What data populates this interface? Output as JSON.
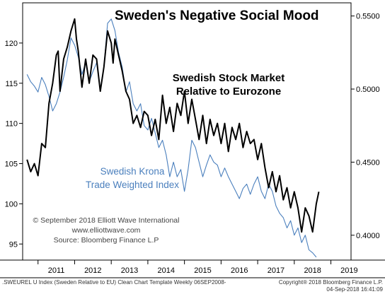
{
  "chart_data": {
    "type": "line",
    "title": "Sweden's Negative Social Mood",
    "annotations": {
      "black_series_label": [
        "Swedish Stock Market",
        "Relative to Eurozone"
      ],
      "blue_series_label": [
        "Swedish Krona",
        "Trade Weighted Index"
      ],
      "credits": [
        "© September 2018 Elliott Wave International",
        "www.elliottwave.com",
        "Source: Bloomberg Finance L.P"
      ]
    },
    "x_ticks": [
      "2011",
      "2012",
      "2013",
      "2014",
      "2015",
      "2016",
      "2017",
      "2018",
      "2019"
    ],
    "y_left": {
      "ticks": [
        "95",
        "100",
        "105",
        "110",
        "115",
        "120"
      ],
      "ylim": [
        93.0,
        125.0
      ]
    },
    "y_right": {
      "ticks": [
        "0.4000",
        "0.4500",
        "0.5000",
        "0.5500"
      ],
      "ylim": [
        0.383,
        0.559
      ]
    },
    "grid": false,
    "series": [
      {
        "key": "stock",
        "color": "#000000",
        "axis": "left",
        "x": [
          2010.7,
          2010.8,
          2010.9,
          2011.0,
          2011.1,
          2011.2,
          2011.3,
          2011.4,
          2011.5,
          2011.55,
          2011.6,
          2011.7,
          2011.8,
          2011.9,
          2012.0,
          2012.05,
          2012.1,
          2012.2,
          2012.3,
          2012.4,
          2012.5,
          2012.6,
          2012.7,
          2012.8,
          2012.9,
          2013.0,
          2013.05,
          2013.1,
          2013.2,
          2013.3,
          2013.4,
          2013.5,
          2013.6,
          2013.7,
          2013.8,
          2013.9,
          2014.0,
          2014.1,
          2014.2,
          2014.3,
          2014.4,
          2014.5,
          2014.6,
          2014.7,
          2014.8,
          2014.9,
          2015.0,
          2015.1,
          2015.2,
          2015.3,
          2015.4,
          2015.5,
          2015.6,
          2015.7,
          2015.8,
          2015.9,
          2016.0,
          2016.1,
          2016.2,
          2016.3,
          2016.4,
          2016.5,
          2016.6,
          2016.7,
          2016.8,
          2016.9,
          2017.0,
          2017.1,
          2017.2,
          2017.3,
          2017.4,
          2017.5,
          2017.6,
          2017.7,
          2017.8,
          2017.9,
          2018.0,
          2018.1,
          2018.2,
          2018.3,
          2018.4,
          2018.5,
          2018.6,
          2018.67
        ],
        "values": [
          105.5,
          104.0,
          105.0,
          103.5,
          107.5,
          107.0,
          112.5,
          115.0,
          118.5,
          119.0,
          114.0,
          118.0,
          119.5,
          121.5,
          123.0,
          120.5,
          119.0,
          114.5,
          118.0,
          115.0,
          118.5,
          118.0,
          114.0,
          117.0,
          121.5,
          120.0,
          117.5,
          120.5,
          118.5,
          116.5,
          114.0,
          113.0,
          110.0,
          111.0,
          109.5,
          111.5,
          111.0,
          108.5,
          110.5,
          108.0,
          113.5,
          110.0,
          112.0,
          109.0,
          112.5,
          111.0,
          114.0,
          110.0,
          113.0,
          110.5,
          108.0,
          111.0,
          107.5,
          110.5,
          108.5,
          110.0,
          107.5,
          110.0,
          106.5,
          109.5,
          108.0,
          110.0,
          107.0,
          109.0,
          107.5,
          108.0,
          105.5,
          107.5,
          104.5,
          102.0,
          104.0,
          101.5,
          103.5,
          100.5,
          102.0,
          99.5,
          101.5,
          99.5,
          96.5,
          99.5,
          98.5,
          96.5,
          100.0,
          101.5
        ]
      },
      {
        "key": "krona",
        "color": "#4a7fbd",
        "axis": "right",
        "x": [
          2010.7,
          2010.8,
          2010.9,
          2011.0,
          2011.1,
          2011.2,
          2011.3,
          2011.4,
          2011.5,
          2011.6,
          2011.7,
          2011.8,
          2011.9,
          2012.0,
          2012.1,
          2012.2,
          2012.3,
          2012.4,
          2012.5,
          2012.6,
          2012.7,
          2012.8,
          2012.9,
          2013.0,
          2013.1,
          2013.2,
          2013.3,
          2013.4,
          2013.5,
          2013.6,
          2013.7,
          2013.8,
          2013.9,
          2014.0,
          2014.1,
          2014.2,
          2014.3,
          2014.4,
          2014.5,
          2014.6,
          2014.7,
          2014.8,
          2014.9,
          2015.0,
          2015.1,
          2015.2,
          2015.3,
          2015.4,
          2015.5,
          2015.6,
          2015.7,
          2015.8,
          2015.9,
          2016.0,
          2016.1,
          2016.2,
          2016.3,
          2016.4,
          2016.5,
          2016.6,
          2016.7,
          2016.8,
          2016.9,
          2017.0,
          2017.1,
          2017.2,
          2017.3,
          2017.4,
          2017.5,
          2017.6,
          2017.7,
          2017.8,
          2017.9,
          2018.0,
          2018.1,
          2018.2,
          2018.3,
          2018.4,
          2018.5,
          2018.6
        ],
        "values": [
          0.51,
          0.505,
          0.502,
          0.498,
          0.508,
          0.503,
          0.495,
          0.485,
          0.49,
          0.498,
          0.508,
          0.52,
          0.535,
          0.53,
          0.522,
          0.51,
          0.518,
          0.505,
          0.512,
          0.518,
          0.5,
          0.515,
          0.545,
          0.548,
          0.54,
          0.525,
          0.515,
          0.498,
          0.505,
          0.49,
          0.485,
          0.49,
          0.475,
          0.472,
          0.48,
          0.47,
          0.46,
          0.465,
          0.455,
          0.44,
          0.45,
          0.44,
          0.445,
          0.43,
          0.445,
          0.465,
          0.46,
          0.45,
          0.44,
          0.448,
          0.455,
          0.45,
          0.448,
          0.44,
          0.446,
          0.44,
          0.435,
          0.43,
          0.425,
          0.432,
          0.435,
          0.428,
          0.435,
          0.44,
          0.43,
          0.425,
          0.435,
          0.43,
          0.42,
          0.415,
          0.412,
          0.405,
          0.41,
          0.4,
          0.405,
          0.395,
          0.4,
          0.39,
          0.388,
          0.385
        ]
      }
    ]
  },
  "footer": {
    "left": ".SWEUREL U Index (Sweden Relative to EU) Clean Chart Template  Weekly 06SEP2008-",
    "right_line1": "Copyright® 2018 Bloomberg Finance L.P.",
    "right_line2": "04-Sep-2018 16:41:09"
  }
}
